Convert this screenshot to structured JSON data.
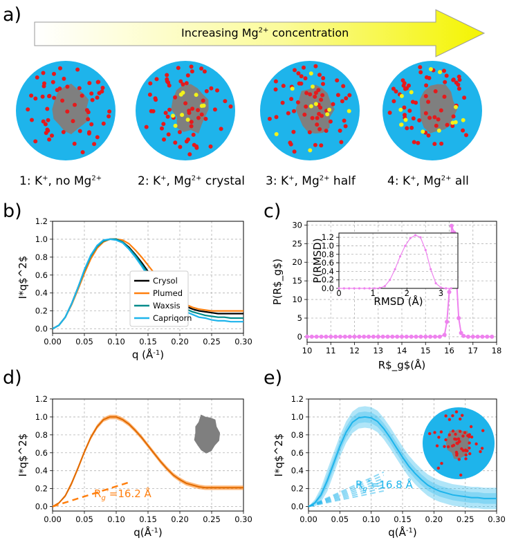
{
  "panel_a": {
    "label": "a)",
    "arrow_text": "Increasing Mg",
    "arrow_sup": "2+",
    "arrow_suffix": " concentration",
    "captions": [
      {
        "main": "1: K",
        "sup1": "+",
        "mid": ", no Mg",
        "sup2": "2+",
        "end": ""
      },
      {
        "main": "2: K",
        "sup1": "+",
        "mid": ", Mg",
        "sup2": "2+",
        "end": " crystal"
      },
      {
        "main": "3: K",
        "sup1": "+",
        "mid": ", Mg",
        "sup2": "2+",
        "end": " half"
      },
      {
        "main": "4: K",
        "sup1": "+",
        "mid": ", Mg",
        "sup2": "2+",
        "end": " all"
      }
    ],
    "colors": {
      "solvent": "#1eb4eb",
      "protein": "#7f7f7f",
      "potassium": "#e41a1c",
      "magnesium": "#f2f21a"
    }
  },
  "panel_b": {
    "label": "b)"
  },
  "panel_c": {
    "label": "c)"
  },
  "panel_d": {
    "label": "d)"
  },
  "panel_e": {
    "label": "e)"
  },
  "chart_data": [
    {
      "type": "line",
      "panel": "b",
      "xlabel": "q (Å$^{-1}$)",
      "ylabel": "I*q$^2$",
      "xlim": [
        0.0,
        0.3
      ],
      "ylim": [
        -0.05,
        1.2
      ],
      "xticks": [
        "0.00",
        "0.05",
        "0.10",
        "0.15",
        "0.20",
        "0.25",
        "0.30"
      ],
      "yticks": [
        "0.0",
        "0.2",
        "0.4",
        "0.6",
        "0.8",
        "1.0",
        "1.2"
      ],
      "grid": true,
      "legend_position": "right",
      "x": [
        0.0,
        0.01,
        0.02,
        0.03,
        0.04,
        0.05,
        0.06,
        0.07,
        0.08,
        0.09,
        0.1,
        0.11,
        0.12,
        0.13,
        0.14,
        0.15,
        0.16,
        0.17,
        0.18,
        0.19,
        0.2,
        0.21,
        0.22,
        0.23,
        0.24,
        0.25,
        0.26,
        0.27,
        0.28,
        0.29,
        0.3
      ],
      "series": [
        {
          "name": "Crysol",
          "color": "#000000",
          "values": [
            0.0,
            0.04,
            0.13,
            0.28,
            0.46,
            0.65,
            0.81,
            0.92,
            0.98,
            1.0,
            1.0,
            0.97,
            0.91,
            0.83,
            0.74,
            0.64,
            0.55,
            0.47,
            0.4,
            0.34,
            0.29,
            0.25,
            0.22,
            0.2,
            0.19,
            0.18,
            0.17,
            0.17,
            0.17,
            0.17,
            0.17
          ]
        },
        {
          "name": "Plumed",
          "color": "#ff7f0e",
          "values": [
            0.0,
            0.04,
            0.13,
            0.27,
            0.44,
            0.62,
            0.78,
            0.9,
            0.97,
            1.0,
            1.0,
            0.99,
            0.95,
            0.88,
            0.8,
            0.71,
            0.62,
            0.53,
            0.45,
            0.38,
            0.32,
            0.27,
            0.24,
            0.22,
            0.21,
            0.2,
            0.2,
            0.2,
            0.2,
            0.2,
            0.2
          ]
        },
        {
          "name": "Waxsis",
          "color": "#008b8b",
          "values": [
            0.0,
            0.04,
            0.13,
            0.28,
            0.46,
            0.65,
            0.81,
            0.92,
            0.98,
            1.0,
            1.0,
            0.97,
            0.9,
            0.82,
            0.72,
            0.62,
            0.52,
            0.44,
            0.37,
            0.31,
            0.26,
            0.22,
            0.19,
            0.17,
            0.15,
            0.14,
            0.13,
            0.13,
            0.12,
            0.12,
            0.12
          ]
        },
        {
          "name": "Capriqorn",
          "color": "#1eb4eb",
          "values": [
            0.0,
            0.04,
            0.13,
            0.28,
            0.46,
            0.66,
            0.82,
            0.93,
            0.99,
            1.0,
            0.99,
            0.96,
            0.89,
            0.8,
            0.7,
            0.59,
            0.49,
            0.41,
            0.34,
            0.28,
            0.23,
            0.19,
            0.16,
            0.13,
            0.12,
            0.1,
            0.09,
            0.09,
            0.08,
            0.08,
            0.08
          ]
        }
      ]
    },
    {
      "type": "line",
      "panel": "c",
      "xlabel": "R$_g$(Å)",
      "ylabel": "P(R$_g$)",
      "xlim": [
        10,
        18
      ],
      "ylim": [
        -1.5,
        31
      ],
      "xticks": [
        "10",
        "11",
        "12",
        "13",
        "14",
        "15",
        "16",
        "17",
        "18"
      ],
      "yticks": [
        "0",
        "5",
        "10",
        "15",
        "20",
        "25",
        "30"
      ],
      "grid": true,
      "series": [
        {
          "color": "#ee82ee",
          "x": [
            10.0,
            10.2,
            10.4,
            10.6,
            10.8,
            11.0,
            11.2,
            11.4,
            11.6,
            11.8,
            12.0,
            12.2,
            12.4,
            12.6,
            12.8,
            13.0,
            13.2,
            13.4,
            13.6,
            13.8,
            14.0,
            14.2,
            14.4,
            14.6,
            14.8,
            15.0,
            15.2,
            15.4,
            15.6,
            15.8,
            15.9,
            16.0,
            16.1,
            16.2,
            16.3,
            16.4,
            16.5,
            16.6,
            16.8,
            17.0,
            17.2,
            17.4,
            17.6,
            17.8
          ],
          "values": [
            0,
            0,
            0,
            0,
            0,
            0,
            0,
            0,
            0,
            0,
            0,
            0,
            0,
            0,
            0,
            0,
            0,
            0,
            0,
            0,
            0,
            0,
            0,
            0,
            0,
            0,
            0,
            0,
            0,
            0.5,
            4,
            12,
            29.8,
            28,
            16,
            5,
            1,
            0.2,
            0,
            0,
            0,
            0,
            0,
            0
          ]
        }
      ],
      "inset": {
        "type": "line",
        "xlabel": "RMSD (Å)",
        "ylabel": "P(RMSD)",
        "xlim": [
          0,
          3.5
        ],
        "ylim": [
          0,
          1.3
        ],
        "xticks": [
          "0",
          "1",
          "2",
          "3"
        ],
        "yticks": [
          "0.0",
          "0.2",
          "0.4",
          "0.6",
          "0.8",
          "1.0",
          "1.2"
        ],
        "grid": true,
        "series": [
          {
            "color": "#ee82ee",
            "x": [
              0.0,
              0.15,
              0.3,
              0.45,
              0.6,
              0.75,
              0.9,
              1.05,
              1.2,
              1.35,
              1.5,
              1.65,
              1.8,
              1.95,
              2.1,
              2.25,
              2.4,
              2.55,
              2.7,
              2.85,
              3.0,
              3.15,
              3.3
            ],
            "values": [
              0,
              0,
              0,
              0,
              0,
              0,
              0,
              0,
              0.01,
              0.05,
              0.2,
              0.45,
              0.75,
              1.0,
              1.18,
              1.25,
              1.2,
              0.9,
              0.45,
              0.12,
              0.02,
              0,
              0
            ]
          }
        ]
      }
    },
    {
      "type": "line",
      "panel": "d",
      "xlabel": "q(Å$^{-1}$)",
      "ylabel": "I*q$^2$",
      "xlim": [
        0.0,
        0.3
      ],
      "ylim": [
        -0.05,
        1.2
      ],
      "xticks": [
        "0.00",
        "0.05",
        "0.10",
        "0.15",
        "0.20",
        "0.25",
        "0.30"
      ],
      "yticks": [
        "0.0",
        "0.2",
        "0.4",
        "0.6",
        "0.8",
        "1.0",
        "1.2"
      ],
      "grid": true,
      "annotation": {
        "main": "R",
        "sub": "g",
        "sup": "*",
        "rest": "=16.2 Å"
      },
      "color": "#ff7f0e",
      "x": [
        0.0,
        0.01,
        0.02,
        0.03,
        0.04,
        0.05,
        0.06,
        0.07,
        0.08,
        0.09,
        0.1,
        0.11,
        0.12,
        0.13,
        0.14,
        0.15,
        0.16,
        0.17,
        0.18,
        0.19,
        0.2,
        0.21,
        0.22,
        0.23,
        0.24,
        0.25,
        0.26,
        0.27,
        0.28,
        0.29,
        0.3
      ],
      "values": [
        0.0,
        0.04,
        0.12,
        0.26,
        0.43,
        0.61,
        0.77,
        0.89,
        0.97,
        1.0,
        1.0,
        0.97,
        0.92,
        0.85,
        0.77,
        0.68,
        0.59,
        0.5,
        0.42,
        0.35,
        0.3,
        0.26,
        0.24,
        0.22,
        0.21,
        0.21,
        0.21,
        0.21,
        0.21,
        0.21,
        0.21
      ],
      "band": 0.025,
      "guinier_x": [
        0.0,
        0.12
      ],
      "guinier_y": [
        0.0,
        0.27
      ]
    },
    {
      "type": "line",
      "panel": "e",
      "xlabel": "q(Å$^{-1}$)",
      "ylabel": "I*q$^2$",
      "xlim": [
        0.0,
        0.3
      ],
      "ylim": [
        -0.05,
        1.2
      ],
      "xticks": [
        "0.00",
        "0.05",
        "0.10",
        "0.15",
        "0.20",
        "0.25",
        "0.30"
      ],
      "yticks": [
        "0.0",
        "0.2",
        "0.4",
        "0.6",
        "0.8",
        "1.0",
        "1.2"
      ],
      "grid": true,
      "annotation": {
        "main": "R",
        "sub": "g",
        "sup": "*",
        "rest": "=16.8 Å"
      },
      "color": "#1eb4eb",
      "x": [
        0.0,
        0.01,
        0.02,
        0.03,
        0.04,
        0.05,
        0.06,
        0.07,
        0.08,
        0.09,
        0.1,
        0.11,
        0.12,
        0.13,
        0.14,
        0.15,
        0.16,
        0.17,
        0.18,
        0.19,
        0.2,
        0.21,
        0.22,
        0.23,
        0.24,
        0.25,
        0.26,
        0.27,
        0.28,
        0.29,
        0.3
      ],
      "values": [
        0.0,
        0.04,
        0.13,
        0.29,
        0.48,
        0.67,
        0.83,
        0.94,
        0.99,
        1.0,
        0.99,
        0.95,
        0.87,
        0.77,
        0.66,
        0.55,
        0.45,
        0.37,
        0.3,
        0.24,
        0.2,
        0.17,
        0.15,
        0.13,
        0.12,
        0.11,
        0.1,
        0.1,
        0.09,
        0.09,
        0.09
      ],
      "band": 0.12,
      "guinier_x": [
        0.0,
        0.12
      ],
      "guinier_y": [
        0.0,
        0.28
      ]
    }
  ]
}
